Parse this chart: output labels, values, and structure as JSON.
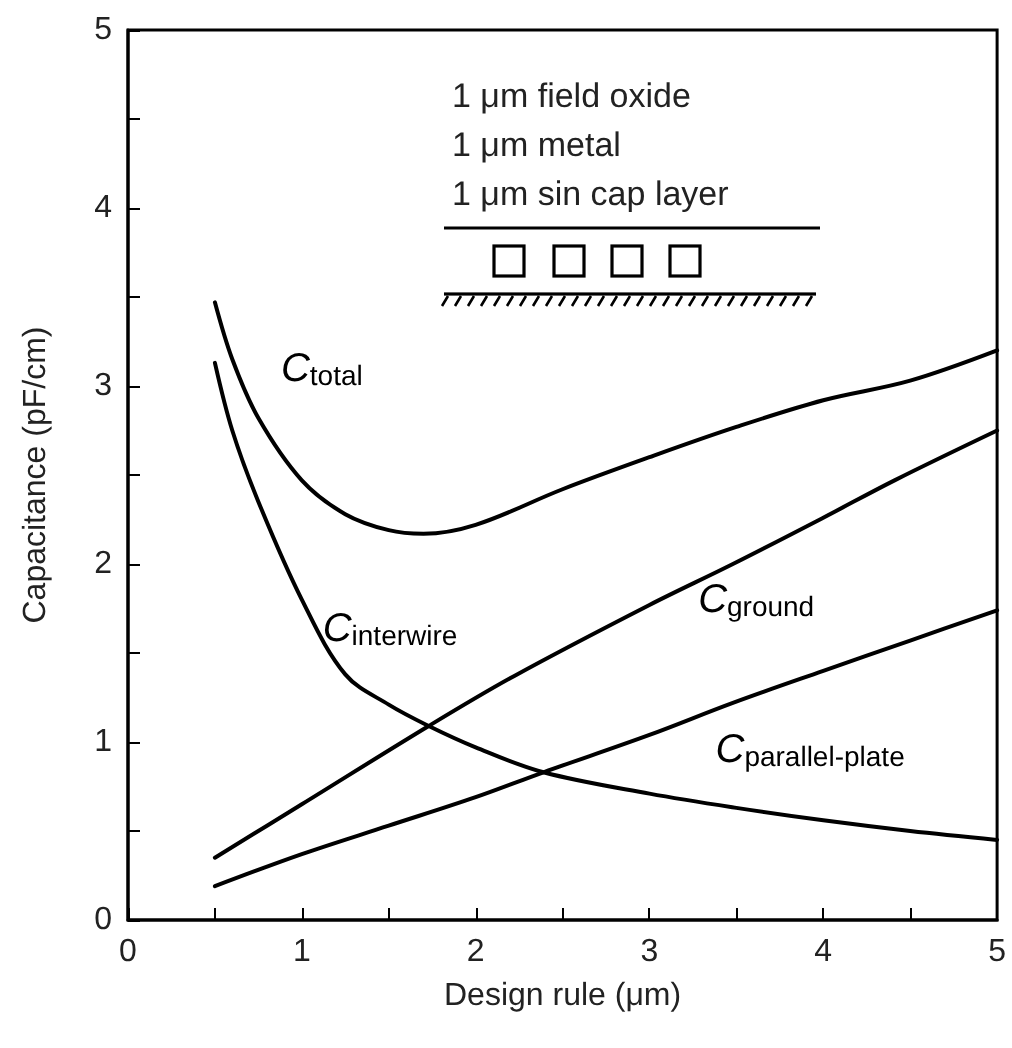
{
  "chart_data": {
    "type": "line",
    "xlabel": "Design rule (μm)",
    "ylabel": "Capacitance (pF/cm)",
    "xlim": [
      0,
      5
    ],
    "ylim": [
      0,
      5
    ],
    "xticks": [
      0,
      {
        "value": 0.5,
        "label": null
      },
      1,
      {
        "value": 1.5,
        "label": null
      },
      2,
      {
        "value": 2.5,
        "label": null
      },
      3,
      {
        "value": 3.5,
        "label": null
      },
      4,
      {
        "value": 4.5,
        "label": null
      },
      5
    ],
    "yticks": [
      0,
      {
        "value": 0.5,
        "label": null
      },
      1,
      {
        "value": 1.5,
        "label": null
      },
      2,
      {
        "value": 2.5,
        "label": null
      },
      3,
      {
        "value": 3.5,
        "label": null
      },
      4,
      {
        "value": 4.5,
        "label": null
      },
      5
    ],
    "series": [
      {
        "name": "C$_{total}$",
        "color": "#000000",
        "x": [
          0.5,
          0.6,
          0.75,
          1,
          1.25,
          1.5,
          1.7,
          2,
          2.5,
          3,
          3.5,
          4,
          4.5,
          5
        ],
        "values": [
          3.47,
          3.15,
          2.82,
          2.47,
          2.28,
          2.19,
          2.17,
          2.22,
          2.42,
          2.6,
          2.77,
          2.92,
          3.03,
          3.2
        ]
      },
      {
        "name": "C$_{interwire}$",
        "color": "#000000",
        "x": [
          0.5,
          0.6,
          0.75,
          1,
          1.25,
          1.5,
          1.73,
          2,
          2.39,
          3,
          3.5,
          4,
          4.5,
          5
        ],
        "values": [
          3.13,
          2.75,
          2.35,
          1.8,
          1.38,
          1.21,
          1.09,
          0.97,
          0.83,
          0.71,
          0.63,
          0.56,
          0.5,
          0.45
        ]
      },
      {
        "name": "C$_{ground}$",
        "color": "#000000",
        "x": [
          0.5,
          1,
          1.73,
          2.22,
          3,
          3.48,
          4,
          4.41,
          5
        ],
        "values": [
          0.35,
          0.65,
          1.09,
          1.37,
          1.77,
          2.0,
          2.26,
          2.47,
          2.75
        ]
      },
      {
        "name": "C$_{parallel-plate}$",
        "color": "#000000",
        "x": [
          0.5,
          1,
          1.5,
          2,
          2.39,
          3,
          3.48,
          4,
          4.5,
          5
        ],
        "values": [
          0.19,
          0.37,
          0.53,
          0.69,
          0.83,
          1.04,
          1.22,
          1.4,
          1.57,
          1.74
        ]
      }
    ],
    "annotations": [
      "1 μm field oxide",
      "1 μm metal",
      "1 μm sin cap layer"
    ],
    "marker": "none",
    "line_style": "solid",
    "grid": false,
    "legend": false
  }
}
